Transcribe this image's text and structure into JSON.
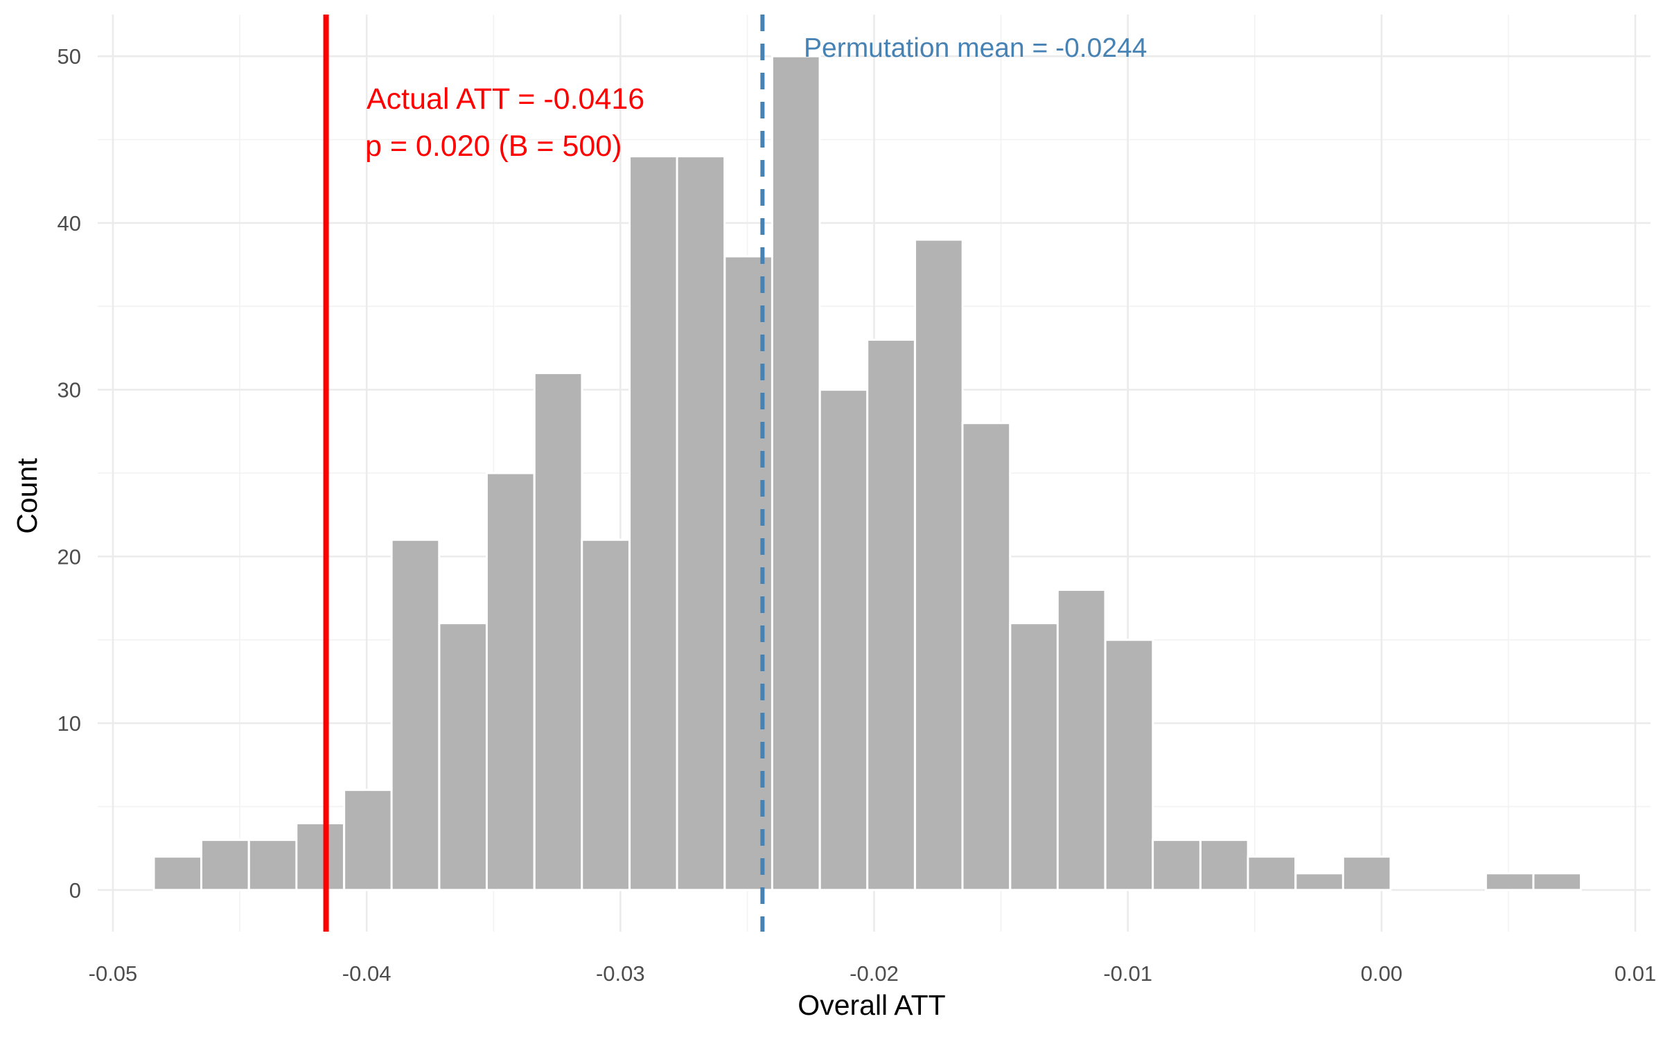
{
  "chart_data": {
    "type": "bar",
    "title": "",
    "xlabel": "Overall ATT",
    "ylabel": "Count",
    "xlim": [
      -0.0506,
      0.0106
    ],
    "ylim": [
      -2.5,
      52.5
    ],
    "grid": true,
    "legend": "none",
    "x_ticks": [
      {
        "value": -0.05,
        "label": "-0.05"
      },
      {
        "value": -0.04,
        "label": "-0.04"
      },
      {
        "value": -0.03,
        "label": "-0.03"
      },
      {
        "value": -0.02,
        "label": "-0.02"
      },
      {
        "value": -0.01,
        "label": "-0.01"
      },
      {
        "value": 0.0,
        "label": "0.00"
      },
      {
        "value": 0.01,
        "label": "0.01"
      }
    ],
    "y_ticks": [
      {
        "value": 0,
        "label": "0"
      },
      {
        "value": 10,
        "label": "10"
      },
      {
        "value": 20,
        "label": "20"
      },
      {
        "value": 30,
        "label": "30"
      },
      {
        "value": 40,
        "label": "40"
      },
      {
        "value": 50,
        "label": "50"
      }
    ],
    "bin_width": 0.001875,
    "bins": [
      {
        "x": -0.04745,
        "count": 2
      },
      {
        "x": -0.04558,
        "count": 3
      },
      {
        "x": -0.0437,
        "count": 3
      },
      {
        "x": -0.04183,
        "count": 4
      },
      {
        "x": -0.03995,
        "count": 6
      },
      {
        "x": -0.03808,
        "count": 21
      },
      {
        "x": -0.0362,
        "count": 16
      },
      {
        "x": -0.03433,
        "count": 25
      },
      {
        "x": -0.03245,
        "count": 31
      },
      {
        "x": -0.03058,
        "count": 21
      },
      {
        "x": -0.0287,
        "count": 44
      },
      {
        "x": -0.02683,
        "count": 44
      },
      {
        "x": -0.02495,
        "count": 38
      },
      {
        "x": -0.02308,
        "count": 50
      },
      {
        "x": -0.0212,
        "count": 30
      },
      {
        "x": -0.01933,
        "count": 33
      },
      {
        "x": -0.01745,
        "count": 39
      },
      {
        "x": -0.01558,
        "count": 28
      },
      {
        "x": -0.0137,
        "count": 16
      },
      {
        "x": -0.01183,
        "count": 18
      },
      {
        "x": -0.00995,
        "count": 15
      },
      {
        "x": -0.00808,
        "count": 3
      },
      {
        "x": -0.0062,
        "count": 3
      },
      {
        "x": -0.00433,
        "count": 2
      },
      {
        "x": -0.00245,
        "count": 1
      },
      {
        "x": -0.00058,
        "count": 2
      },
      {
        "x": 0.00505,
        "count": 1
      },
      {
        "x": 0.00692,
        "count": 1
      }
    ],
    "colors": {
      "bar": "#b3b3b3",
      "actual": "#ff0000",
      "permutation": "#4682b4"
    },
    "reference_lines": {
      "actual": {
        "x": -0.0416,
        "style": "solid"
      },
      "permutation_mean": {
        "x": -0.0244,
        "style": "dashed"
      }
    },
    "annotations": {
      "actual_line1": "Actual ATT = -0.0416",
      "actual_line2": "p = 0.020  (B = 500)",
      "permutation": "Permutation mean = -0.0244"
    }
  }
}
